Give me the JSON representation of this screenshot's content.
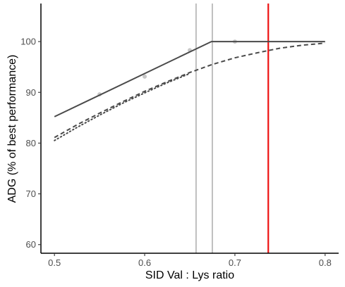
{
  "chart_data": {
    "type": "line",
    "title": "",
    "xlabel": "SID Val : Lys ratio",
    "ylabel": "ADG (% of best performance)",
    "xlim": [
      0.485,
      0.815
    ],
    "ylim": [
      58.3,
      107.5
    ],
    "x_ticks": [
      0.5,
      0.6,
      0.7,
      0.8
    ],
    "x_tick_labels": [
      "0.5",
      "0.6",
      "0.7",
      "0.8"
    ],
    "y_ticks": [
      60,
      70,
      80,
      90,
      100
    ],
    "y_tick_labels": [
      "60",
      "70",
      "80",
      "90",
      "100"
    ],
    "grid": false,
    "legend": "none",
    "colors": {
      "series": "#4a4a4a",
      "points": "#c8c8c8",
      "reference_gray": "#8c8c8c",
      "reference_red": "#ee1111",
      "axis": "#000000"
    },
    "points": {
      "x": [
        0.55,
        0.6,
        0.65,
        0.7
      ],
      "y": [
        89.6,
        93.1,
        98.3,
        100.0
      ]
    },
    "series": [
      {
        "style": "solid",
        "x": [
          0.5,
          0.674,
          0.8
        ],
        "y": [
          85.2,
          100.0,
          100.0
        ]
      },
      {
        "style": "dashed",
        "x": [
          0.5,
          0.525,
          0.55,
          0.575,
          0.6,
          0.625,
          0.65,
          0.675,
          0.7,
          0.725,
          0.75,
          0.775,
          0.8
        ],
        "y": [
          81.1,
          83.6,
          85.9,
          88.1,
          90.2,
          92.1,
          93.9,
          95.5,
          96.8,
          97.8,
          98.7,
          99.3,
          99.7
        ]
      },
      {
        "style": "dotted",
        "x": [
          0.5,
          0.525,
          0.55,
          0.575,
          0.6,
          0.625,
          0.65
        ],
        "y": [
          80.5,
          83.1,
          85.5,
          87.8,
          89.9,
          91.9,
          93.7
        ]
      }
    ],
    "vertical_lines": [
      {
        "x": 0.657,
        "color": "gray"
      },
      {
        "x": 0.675,
        "color": "gray"
      },
      {
        "x": 0.737,
        "color": "red"
      }
    ]
  }
}
